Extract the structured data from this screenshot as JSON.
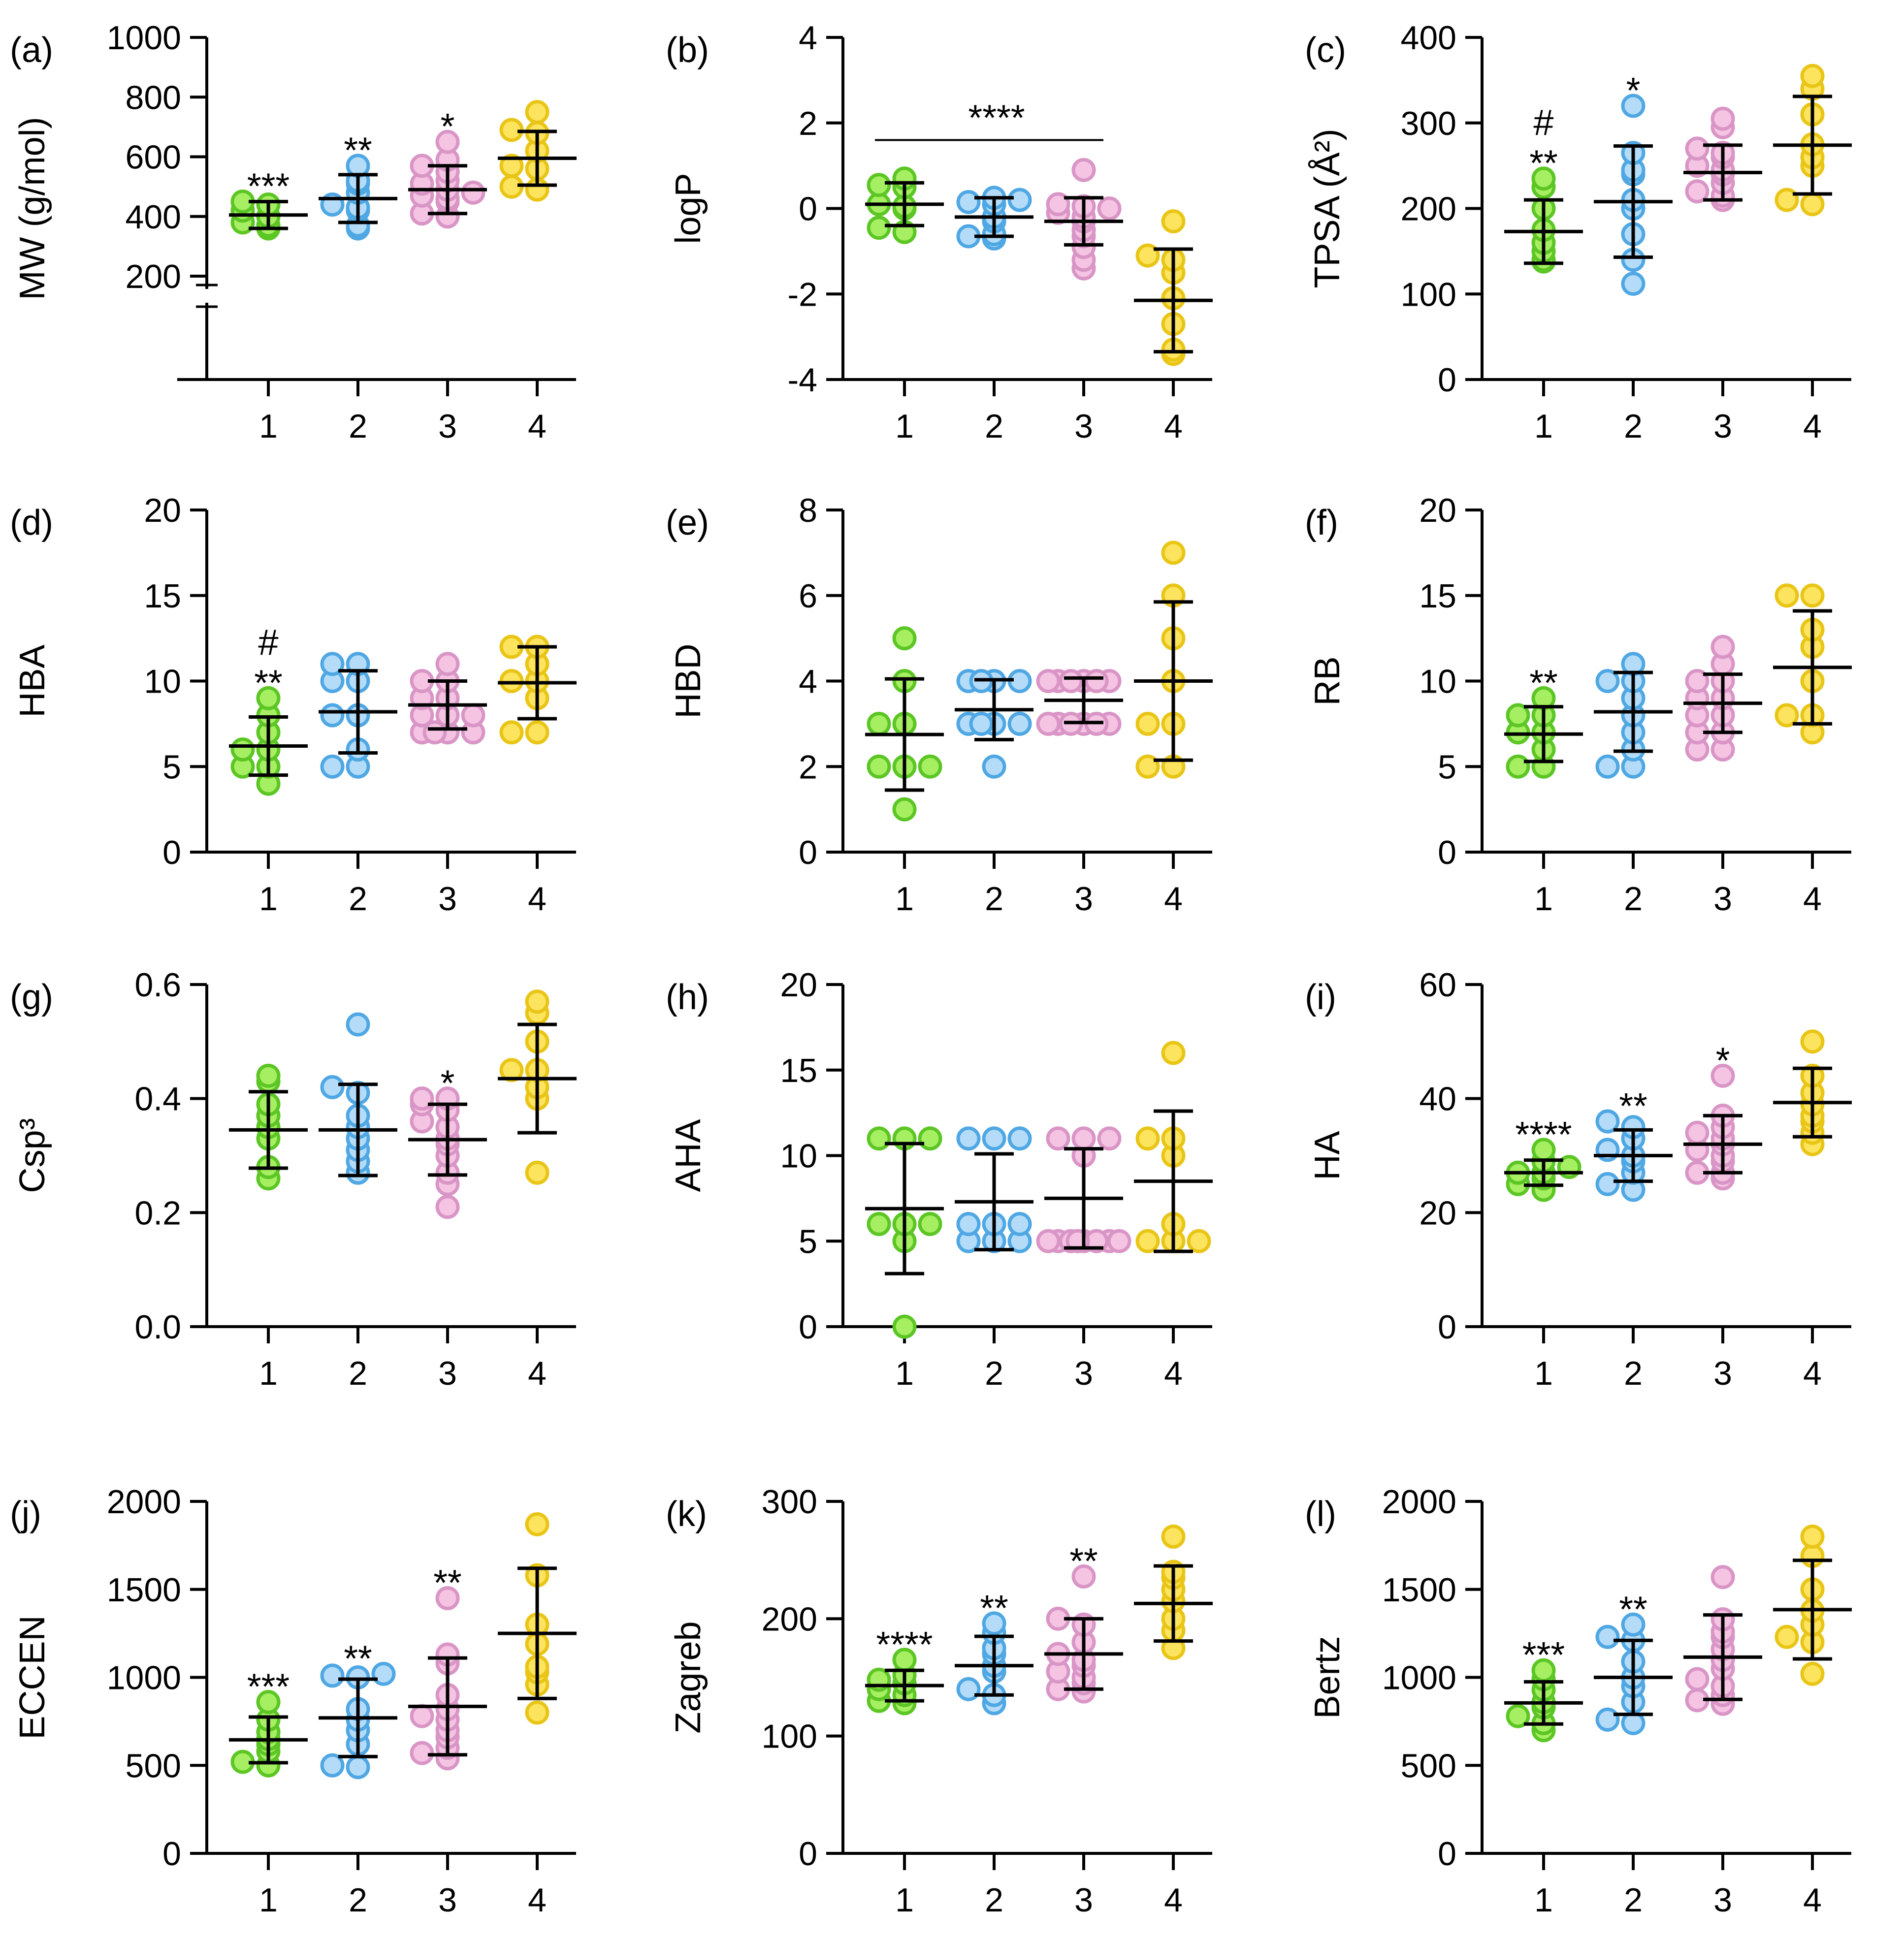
{
  "figure": {
    "background": "#ffffff",
    "axis_color": "#000000"
  },
  "group_colors": {
    "1": {
      "fill": "#a6ee62",
      "stroke": "#5cc625"
    },
    "2": {
      "fill": "#b4dcf8",
      "stroke": "#4fa7e3"
    },
    "3": {
      "fill": "#f4c4e2",
      "stroke": "#d995c6"
    },
    "4": {
      "fill": "#fde45f",
      "stroke": "#e8c516"
    }
  },
  "chart_data": [
    {
      "id": "a",
      "type": "scatter",
      "panel_label": "(a)",
      "ylabel": "MW (g/mol)",
      "categories": [
        "1",
        "2",
        "3",
        "4"
      ],
      "ylim": [
        200,
        1000
      ],
      "yticks": [
        200,
        400,
        600,
        800,
        1000
      ],
      "ytick_labels": [
        "200",
        "400",
        "600",
        "800",
        "1000"
      ],
      "axis_break": true,
      "points": [
        [
          360,
          370,
          380,
          400,
          420,
          440,
          450
        ],
        [
          360,
          370,
          420,
          430,
          440,
          480,
          510,
          520,
          570
        ],
        [
          400,
          410,
          450,
          460,
          470,
          480,
          490,
          510,
          520,
          550,
          570,
          590,
          650
        ],
        [
          490,
          500,
          560,
          570,
          620,
          680,
          690,
          750
        ]
      ],
      "mean": [
        405,
        460,
        490,
        595
      ],
      "sd": [
        45,
        80,
        80,
        90
      ],
      "annotations": [
        {
          "group": "1",
          "lines": [
            "***"
          ]
        },
        {
          "group": "2",
          "lines": [
            "**"
          ]
        },
        {
          "group": "3",
          "lines": [
            "*"
          ]
        }
      ]
    },
    {
      "id": "b",
      "type": "scatter",
      "panel_label": "(b)",
      "ylabel": "logP",
      "categories": [
        "1",
        "2",
        "3",
        "4"
      ],
      "ylim": [
        -4,
        4
      ],
      "yticks": [
        -4,
        -2,
        0,
        2,
        4
      ],
      "ytick_labels": [
        "-4",
        "-2",
        "0",
        "2",
        "4"
      ],
      "points": [
        [
          -0.55,
          -0.45,
          0.0,
          0.05,
          0.1,
          0.5,
          0.55,
          0.7
        ],
        [
          -0.7,
          -0.65,
          -0.6,
          -0.3,
          -0.2,
          0.1,
          0.15,
          0.2,
          0.25
        ],
        [
          -1.4,
          -1.2,
          -0.9,
          -0.65,
          -0.5,
          -0.3,
          -0.2,
          -0.1,
          0.0,
          0.05,
          0.1,
          0.9
        ],
        [
          -3.4,
          -3.3,
          -2.7,
          -2.1,
          -1.5,
          -1.2,
          -1.1,
          -0.3
        ]
      ],
      "mean": [
        0.1,
        -0.2,
        -0.3,
        -2.15
      ],
      "sd": [
        0.5,
        0.45,
        0.55,
        1.2
      ],
      "bracket": {
        "from": "1",
        "to": "3",
        "y": 1.6,
        "label": "****"
      }
    },
    {
      "id": "c",
      "type": "scatter",
      "panel_label": "(c)",
      "ylabel": "TPSA (Å²)",
      "categories": [
        "1",
        "2",
        "3",
        "4"
      ],
      "ylim": [
        0,
        400
      ],
      "yticks": [
        0,
        100,
        200,
        300,
        400
      ],
      "ytick_labels": [
        "0",
        "100",
        "200",
        "300",
        "400"
      ],
      "points": [
        [
          138,
          140,
          150,
          160,
          175,
          200,
          225,
          235
        ],
        [
          112,
          140,
          170,
          200,
          210,
          240,
          245,
          265,
          320
        ],
        [
          210,
          215,
          220,
          230,
          240,
          245,
          250,
          260,
          265,
          270,
          295,
          305
        ],
        [
          205,
          210,
          250,
          260,
          275,
          310,
          340,
          355
        ]
      ],
      "mean": [
        173,
        208,
        242,
        274
      ],
      "sd": [
        37,
        65,
        32,
        57
      ],
      "annotations": [
        {
          "group": "1",
          "lines": [
            "#",
            "**"
          ]
        },
        {
          "group": "2",
          "lines": [
            "*"
          ]
        }
      ]
    },
    {
      "id": "d",
      "type": "scatter",
      "panel_label": "(d)",
      "ylabel": "HBA",
      "categories": [
        "1",
        "2",
        "3",
        "4"
      ],
      "ylim": [
        0,
        20
      ],
      "yticks": [
        0,
        5,
        10,
        15,
        20
      ],
      "ytick_labels": [
        "0",
        "5",
        "10",
        "15",
        "20"
      ],
      "points": [
        [
          4,
          5,
          5,
          6,
          6,
          7,
          8,
          9
        ],
        [
          5,
          5,
          6,
          8,
          8,
          10,
          10,
          11,
          11
        ],
        [
          7,
          7,
          7,
          7,
          8,
          8,
          8,
          9,
          9,
          10,
          10,
          11
        ],
        [
          7,
          7,
          9,
          10,
          10,
          11,
          12,
          12
        ]
      ],
      "mean": [
        6.2,
        8.2,
        8.6,
        9.9
      ],
      "sd": [
        1.7,
        2.4,
        1.4,
        2.1
      ],
      "annotations": [
        {
          "group": "1",
          "lines": [
            "#",
            "**"
          ]
        }
      ]
    },
    {
      "id": "e",
      "type": "scatter",
      "panel_label": "(e)",
      "ylabel": "HBD",
      "categories": [
        "1",
        "2",
        "3",
        "4"
      ],
      "ylim": [
        0,
        8
      ],
      "yticks": [
        0,
        2,
        4,
        6,
        8
      ],
      "ytick_labels": [
        "0",
        "2",
        "4",
        "6",
        "8"
      ],
      "points": [
        [
          1,
          2,
          2,
          2,
          3,
          3,
          4,
          5
        ],
        [
          2,
          3,
          3,
          3,
          3,
          4,
          4,
          4,
          4
        ],
        [
          3,
          3,
          3,
          3,
          3,
          3,
          4,
          4,
          4,
          4,
          4,
          4
        ],
        [
          2,
          2,
          3,
          3,
          4,
          5,
          6,
          7
        ]
      ],
      "mean": [
        2.75,
        3.33,
        3.55,
        4.0
      ],
      "sd": [
        1.3,
        0.7,
        0.52,
        1.85
      ]
    },
    {
      "id": "f",
      "type": "scatter",
      "panel_label": "(f)",
      "ylabel": "RB",
      "categories": [
        "1",
        "2",
        "3",
        "4"
      ],
      "ylim": [
        0,
        20
      ],
      "yticks": [
        0,
        5,
        10,
        15,
        20
      ],
      "ytick_labels": [
        "0",
        "5",
        "10",
        "15",
        "20"
      ],
      "points": [
        [
          5,
          5,
          6,
          7,
          7,
          8,
          8,
          9
        ],
        [
          5,
          5,
          6,
          7,
          8,
          9,
          10,
          10,
          11
        ],
        [
          6,
          6,
          7,
          7,
          8,
          8,
          9,
          9,
          10,
          10,
          11,
          12
        ],
        [
          7,
          8,
          8,
          10,
          12,
          13,
          15,
          15
        ]
      ],
      "mean": [
        6.9,
        8.2,
        8.7,
        10.8
      ],
      "sd": [
        1.6,
        2.3,
        1.7,
        3.3
      ],
      "annotations": [
        {
          "group": "1",
          "lines": [
            "**"
          ]
        }
      ]
    },
    {
      "id": "g",
      "type": "scatter",
      "panel_label": "(g)",
      "ylabel": "Csp³",
      "categories": [
        "1",
        "2",
        "3",
        "4"
      ],
      "ylim": [
        0,
        0.6
      ],
      "yticks": [
        0,
        0.2,
        0.4,
        0.6
      ],
      "ytick_labels": [
        "0.0",
        "0.2",
        "0.4",
        "0.6"
      ],
      "points": [
        [
          0.26,
          0.28,
          0.33,
          0.35,
          0.37,
          0.39,
          0.43,
          0.44
        ],
        [
          0.27,
          0.29,
          0.31,
          0.33,
          0.35,
          0.37,
          0.41,
          0.42,
          0.53
        ],
        [
          0.21,
          0.25,
          0.27,
          0.3,
          0.32,
          0.33,
          0.35,
          0.36,
          0.38,
          0.39,
          0.4,
          0.4
        ],
        [
          0.27,
          0.4,
          0.42,
          0.45,
          0.45,
          0.5,
          0.55,
          0.57
        ]
      ],
      "mean": [
        0.345,
        0.345,
        0.328,
        0.435
      ],
      "sd": [
        0.067,
        0.08,
        0.062,
        0.095
      ],
      "annotations": [
        {
          "group": "3",
          "lines": [
            "*"
          ]
        }
      ]
    },
    {
      "id": "h",
      "type": "scatter",
      "panel_label": "(h)",
      "ylabel": "AHA",
      "categories": [
        "1",
        "2",
        "3",
        "4"
      ],
      "ylim": [
        0,
        20
      ],
      "yticks": [
        0,
        5,
        10,
        15,
        20
      ],
      "ytick_labels": [
        "0",
        "5",
        "10",
        "15",
        "20"
      ],
      "points": [
        [
          0,
          5,
          6,
          6,
          6,
          11,
          11,
          11
        ],
        [
          5,
          5,
          5,
          6,
          6,
          6,
          11,
          11,
          11
        ],
        [
          5,
          5,
          5,
          5,
          5,
          5,
          5,
          5,
          10,
          11,
          11,
          11
        ],
        [
          5,
          5,
          5,
          6,
          10,
          11,
          11,
          16
        ]
      ],
      "mean": [
        6.9,
        7.3,
        7.5,
        8.5
      ],
      "sd": [
        3.8,
        2.8,
        2.9,
        4.1
      ]
    },
    {
      "id": "i",
      "type": "scatter",
      "panel_label": "(i)",
      "ylabel": "HA",
      "categories": [
        "1",
        "2",
        "3",
        "4"
      ],
      "ylim": [
        0,
        60
      ],
      "yticks": [
        0,
        20,
        40,
        60
      ],
      "ytick_labels": [
        "0",
        "20",
        "40",
        "60"
      ],
      "points": [
        [
          24,
          25,
          26,
          27,
          27,
          28,
          29,
          31
        ],
        [
          24,
          25,
          27,
          29,
          30,
          31,
          33,
          35,
          36
        ],
        [
          26,
          27,
          27,
          29,
          30,
          31,
          32,
          33,
          34,
          35,
          37,
          44
        ],
        [
          32,
          34,
          36,
          37,
          39,
          41,
          44,
          50
        ]
      ],
      "mean": [
        27,
        30,
        32,
        39.3
      ],
      "sd": [
        2.2,
        4.5,
        5,
        6
      ],
      "annotations": [
        {
          "group": "1",
          "lines": [
            "****"
          ]
        },
        {
          "group": "2",
          "lines": [
            "**"
          ]
        },
        {
          "group": "3",
          "lines": [
            "*"
          ]
        }
      ]
    },
    {
      "id": "j",
      "type": "scatter",
      "panel_label": "(j)",
      "ylabel": "ECCEN",
      "categories": [
        "1",
        "2",
        "3",
        "4"
      ],
      "ylim": [
        0,
        2000
      ],
      "yticks": [
        0,
        500,
        1000,
        1500,
        2000
      ],
      "ytick_labels": [
        "0",
        "500",
        "1000",
        "1500",
        "2000"
      ],
      "points": [
        [
          500,
          520,
          580,
          620,
          650,
          690,
          760,
          860
        ],
        [
          490,
          500,
          620,
          700,
          760,
          820,
          1000,
          1010,
          1020
        ],
        [
          540,
          570,
          600,
          660,
          700,
          760,
          780,
          820,
          900,
          1080,
          1130,
          1450
        ],
        [
          800,
          960,
          1030,
          1060,
          1190,
          1300,
          1580,
          1870
        ]
      ],
      "mean": [
        645,
        770,
        835,
        1250
      ],
      "sd": [
        130,
        220,
        275,
        370
      ],
      "annotations": [
        {
          "group": "1",
          "lines": [
            "***"
          ]
        },
        {
          "group": "2",
          "lines": [
            "**"
          ]
        },
        {
          "group": "3",
          "lines": [
            "**"
          ]
        }
      ]
    },
    {
      "id": "k",
      "type": "scatter",
      "panel_label": "(k)",
      "ylabel": "Zagreb",
      "categories": [
        "1",
        "2",
        "3",
        "4"
      ],
      "ylim": [
        0,
        300
      ],
      "yticks": [
        0,
        100,
        200,
        300
      ],
      "ytick_labels": [
        "0",
        "100",
        "200",
        "300"
      ],
      "points": [
        [
          128,
          130,
          135,
          140,
          145,
          148,
          152,
          165
        ],
        [
          128,
          135,
          140,
          155,
          160,
          170,
          175,
          188,
          196
        ],
        [
          138,
          140,
          145,
          150,
          155,
          160,
          165,
          170,
          180,
          195,
          200,
          236
        ],
        [
          175,
          190,
          200,
          215,
          225,
          235,
          240,
          270
        ]
      ],
      "mean": [
        143,
        160,
        170,
        213
      ],
      "sd": [
        13,
        25,
        30,
        32
      ],
      "annotations": [
        {
          "group": "1",
          "lines": [
            "****"
          ]
        },
        {
          "group": "2",
          "lines": [
            "**"
          ]
        },
        {
          "group": "3",
          "lines": [
            "**"
          ]
        }
      ]
    },
    {
      "id": "l",
      "type": "scatter",
      "panel_label": "(l)",
      "ylabel": "Bertz",
      "categories": [
        "1",
        "2",
        "3",
        "4"
      ],
      "ylim": [
        0,
        2000
      ],
      "yticks": [
        0,
        500,
        1000,
        1500,
        2000
      ],
      "ytick_labels": [
        "0",
        "500",
        "1000",
        "1500",
        "2000"
      ],
      "points": [
        [
          700,
          740,
          780,
          830,
          860,
          930,
          990,
          1040
        ],
        [
          740,
          760,
          860,
          950,
          1000,
          1090,
          1210,
          1230,
          1300
        ],
        [
          850,
          870,
          900,
          950,
          990,
          1050,
          1100,
          1160,
          1230,
          1260,
          1330,
          1570
        ],
        [
          1020,
          1200,
          1230,
          1300,
          1380,
          1500,
          1690,
          1800
        ]
      ],
      "mean": [
        855,
        1000,
        1115,
        1385
      ],
      "sd": [
        120,
        210,
        240,
        280
      ],
      "annotations": [
        {
          "group": "1",
          "lines": [
            "***"
          ]
        },
        {
          "group": "2",
          "lines": [
            "**"
          ]
        }
      ]
    }
  ]
}
